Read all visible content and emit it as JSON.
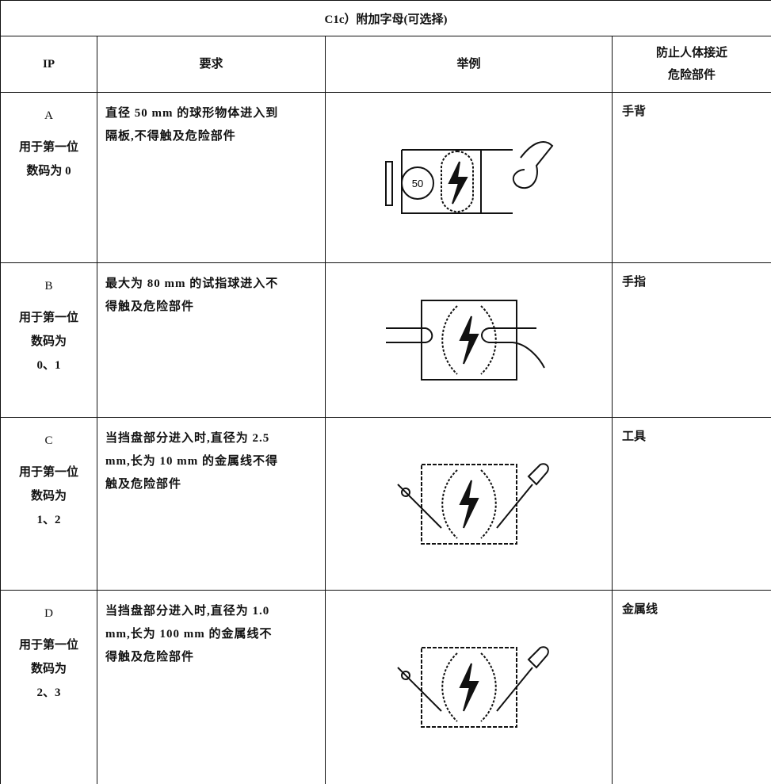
{
  "table": {
    "title": "C1c）附加字母(可选择)",
    "header": {
      "ip": "IP",
      "requirement": "要求",
      "example": "举例",
      "protection": [
        "防止人体接近",
        "危险部件"
      ]
    },
    "rows": [
      {
        "letter": "A",
        "note": [
          "用于第一位",
          "数码为 0"
        ],
        "requirement": [
          "直径 50 mm 的球形物体进入到",
          "隔板,不得触及危险部件"
        ],
        "example_label": "50",
        "protection": "手背"
      },
      {
        "letter": "B",
        "note": [
          "用于第一位",
          "数码为",
          "0、1"
        ],
        "requirement": [
          "最大为 80 mm 的试指球进入不",
          "得触及危险部件"
        ],
        "protection": "手指"
      },
      {
        "letter": "C",
        "note": [
          "用于第一位",
          "数码为",
          "1、2"
        ],
        "requirement": [
          "当挡盘部分进入时,直径为 2.5",
          "mm,长为 10 mm 的金属线不得",
          "触及危险部件"
        ],
        "protection": "工具"
      },
      {
        "letter": "D",
        "note": [
          "用于第一位",
          "数码为",
          "2、3"
        ],
        "requirement": [
          "当挡盘部分进入时,直径为 1.0",
          "mm,长为 100 mm 的金属线不",
          "得触及危险部件"
        ],
        "protection": "金属线"
      }
    ]
  }
}
